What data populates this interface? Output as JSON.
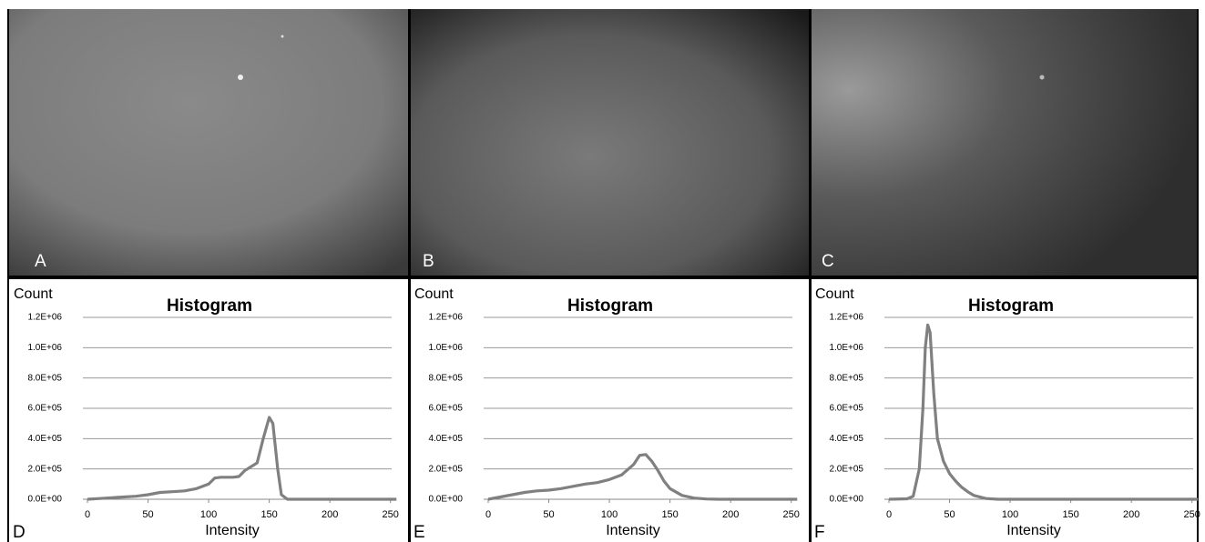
{
  "image_panels": [
    {
      "label": "A"
    },
    {
      "label": "B"
    },
    {
      "label": "C"
    }
  ],
  "chart_data": [
    {
      "type": "line",
      "label": "D",
      "title": "Histogram",
      "y_label": "Count",
      "x_label": "Intensity",
      "x": [
        0,
        10,
        20,
        30,
        40,
        50,
        60,
        70,
        80,
        90,
        100,
        105,
        110,
        120,
        125,
        130,
        140,
        145,
        150,
        153,
        157,
        160,
        165,
        255
      ],
      "series": [
        {
          "color": "#808080",
          "values": [
            0,
            5000,
            10000,
            15000,
            20000,
            30000,
            45000,
            50000,
            55000,
            70000,
            100000,
            140000,
            145000,
            145000,
            150000,
            190000,
            240000,
            400000,
            540000,
            500000,
            200000,
            30000,
            0,
            0
          ]
        }
      ],
      "xlim": [
        0,
        256
      ],
      "xticks": [
        0,
        50,
        100,
        150,
        200,
        250
      ],
      "ylim": [
        0,
        1200000
      ],
      "yticks": [
        {
          "value": 0,
          "label": "0.0E+00"
        },
        {
          "value": 200000,
          "label": "2.0E+05"
        },
        {
          "value": 400000,
          "label": "4.0E+05"
        },
        {
          "value": 600000,
          "label": "6.0E+05"
        },
        {
          "value": 800000,
          "label": "8.0E+05"
        },
        {
          "value": 1000000,
          "label": "1.0E+06"
        },
        {
          "value": 1200000,
          "label": "1.2E+06"
        }
      ],
      "grid": true
    },
    {
      "type": "line",
      "label": "E",
      "title": "Histogram",
      "y_label": "Count",
      "x_label": "Intensity",
      "x": [
        0,
        10,
        20,
        30,
        40,
        50,
        60,
        70,
        80,
        90,
        100,
        110,
        120,
        125,
        130,
        135,
        140,
        145,
        150,
        160,
        170,
        180,
        190,
        255
      ],
      "series": [
        {
          "color": "#808080",
          "values": [
            0,
            15000,
            30000,
            45000,
            55000,
            60000,
            70000,
            85000,
            100000,
            110000,
            130000,
            160000,
            230000,
            290000,
            295000,
            250000,
            190000,
            120000,
            70000,
            25000,
            8000,
            2000,
            0,
            0
          ]
        }
      ],
      "xlim": [
        0,
        256
      ],
      "xticks": [
        0,
        50,
        100,
        150,
        200,
        250
      ],
      "ylim": [
        0,
        1200000
      ],
      "yticks": [
        {
          "value": 0,
          "label": "0.0E+00"
        },
        {
          "value": 200000,
          "label": "2.0E+05"
        },
        {
          "value": 400000,
          "label": "4.0E+05"
        },
        {
          "value": 600000,
          "label": "6.0E+05"
        },
        {
          "value": 800000,
          "label": "8.0E+05"
        },
        {
          "value": 1000000,
          "label": "1.0E+06"
        },
        {
          "value": 1200000,
          "label": "1.2E+06"
        }
      ],
      "grid": true
    },
    {
      "type": "line",
      "label": "F",
      "title": "Histogram",
      "y_label": "Count",
      "x_label": "Intensity",
      "x": [
        0,
        15,
        20,
        25,
        28,
        30,
        32,
        34,
        37,
        40,
        45,
        50,
        55,
        60,
        65,
        70,
        80,
        90,
        255
      ],
      "series": [
        {
          "color": "#808080",
          "values": [
            0,
            3000,
            20000,
            200000,
            600000,
            1000000,
            1150000,
            1100000,
            700000,
            400000,
            250000,
            170000,
            120000,
            80000,
            50000,
            25000,
            5000,
            0,
            0
          ]
        }
      ],
      "xlim": [
        0,
        256
      ],
      "xticks": [
        0,
        50,
        100,
        150,
        200,
        250
      ],
      "ylim": [
        0,
        1200000
      ],
      "yticks": [
        {
          "value": 0,
          "label": "0.0E+00"
        },
        {
          "value": 200000,
          "label": "2.0E+05"
        },
        {
          "value": 400000,
          "label": "4.0E+05"
        },
        {
          "value": 600000,
          "label": "6.0E+05"
        },
        {
          "value": 800000,
          "label": "8.0E+05"
        },
        {
          "value": 1000000,
          "label": "1.0E+06"
        },
        {
          "value": 1200000,
          "label": "1.2E+06"
        }
      ],
      "grid": true
    }
  ]
}
